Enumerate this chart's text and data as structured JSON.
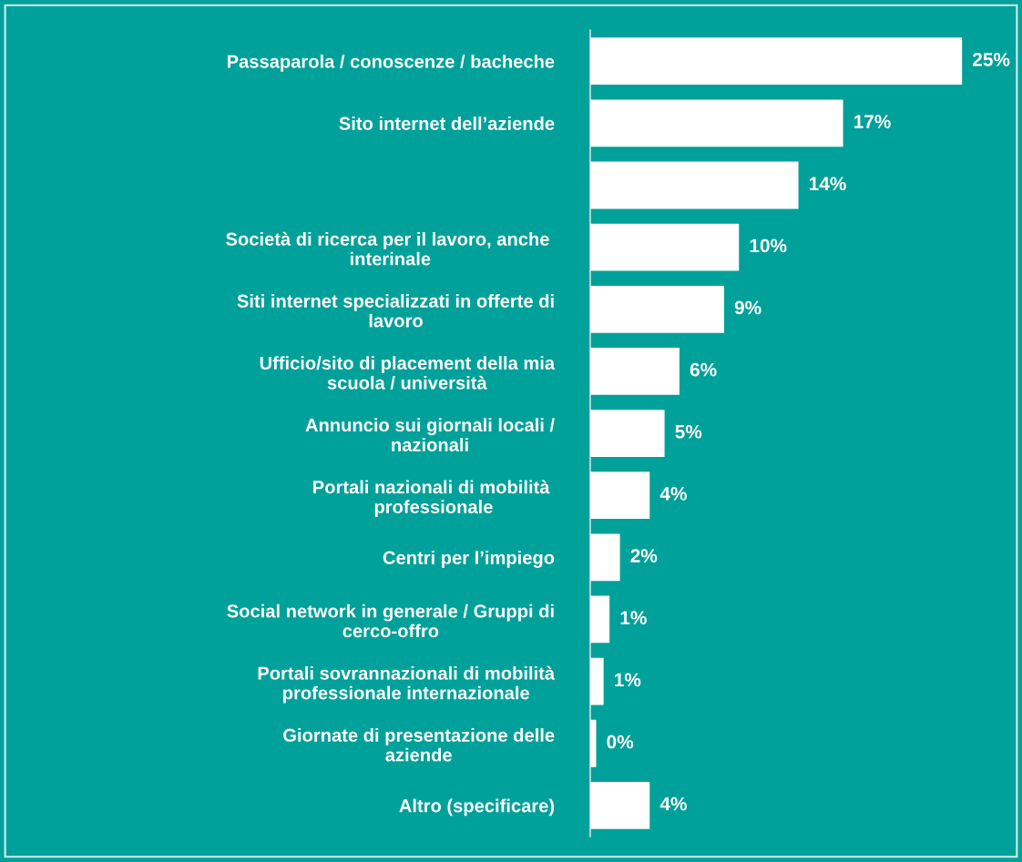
{
  "chart_data": {
    "type": "bar",
    "orientation": "horizontal",
    "categories": [
      "Passaparola / conoscenze / bacheche",
      "Sito internet dell’aziende",
      null,
      "Società di ricerca per il lavoro, anche \ninterinale",
      "Siti internet specializzati in offerte di\nlavoro",
      "Ufficio/sito di placement della mia\nscuola / università",
      "Annuncio sui giornali locali /\nnazionali",
      "Portali nazionali di mobilità \nprofessionale",
      "Centri per l’impiego",
      "Social network in generale / Gruppi di\ncerco-offro",
      "Portali sovrannazionali di mobilità\nprofessionale internazionale",
      "Giornate di presentazione delle\naziende",
      "Altro (specificare)"
    ],
    "values": [
      25,
      17,
      14,
      10,
      9,
      6,
      5,
      4,
      2,
      1.3,
      0.9,
      0.4,
      4
    ],
    "value_labels": [
      "25%",
      "17%",
      "14%",
      "10%",
      "9%",
      "6%",
      "5%",
      "4%",
      "2%",
      "1%",
      "1%",
      "0%",
      "4%"
    ],
    "color": "#ffffff",
    "tick_labels": "y",
    "grid": false,
    "legend": false
  }
}
